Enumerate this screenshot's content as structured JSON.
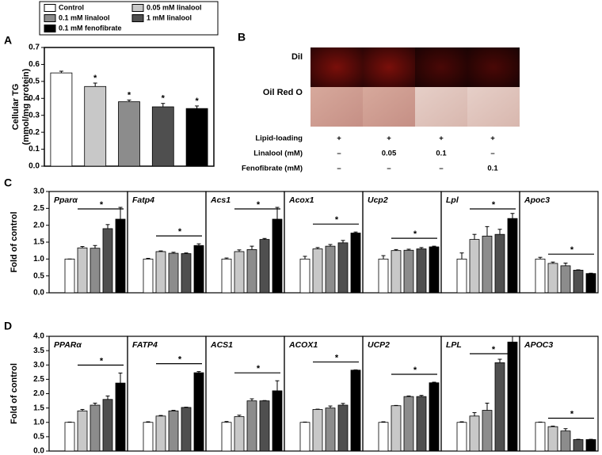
{
  "panel_labels": [
    "A",
    "B",
    "C",
    "D"
  ],
  "legend": [
    {
      "name": "Control",
      "color": "#ffffff"
    },
    {
      "name": "0.05 mM linalool",
      "color": "#c8c8c8"
    },
    {
      "name": "0.1 mM linalool",
      "color": "#8c8c8c"
    },
    {
      "name": "1 mM linalool",
      "color": "#4f4f4f"
    },
    {
      "name": "0.1 mM fenofibrate",
      "color": "#000000"
    }
  ],
  "image_panel": {
    "row_labels": [
      "DiI",
      "Oil Red O"
    ],
    "conditions": [
      {
        "name": "Lipid-loading",
        "values": [
          "+",
          "+",
          "+",
          "+"
        ]
      },
      {
        "name": "Linalool (mM)",
        "values": [
          "–",
          "0.05",
          "0.1",
          "–"
        ]
      },
      {
        "name": "Fenofibrate (mM)",
        "values": [
          "–",
          "–",
          "–",
          "0.1"
        ]
      }
    ]
  },
  "chart_data": [
    {
      "type": "bar",
      "ylabel": [
        "Cellular TG",
        "(mmol/mg protein)"
      ],
      "values": [
        0.55,
        0.47,
        0.38,
        0.35,
        0.34
      ],
      "errors": [
        0.01,
        0.02,
        0.01,
        0.02,
        0.015
      ],
      "bar_annotations": [
        null,
        "*",
        "*",
        "*",
        "*"
      ],
      "ylim": [
        0,
        0.7
      ],
      "yticks": [
        {
          "value": 0,
          "label": "0.0"
        },
        0.1,
        0.2,
        0.3,
        0.4,
        0.5,
        0.6,
        0.7
      ]
    },
    {
      "type": "facet_bar",
      "ylabel": "Fold of control",
      "ylim": [
        0,
        3
      ],
      "yticks": [
        {
          "value": 0,
          "label": "0.0"
        },
        0.5,
        {
          "value": 1,
          "label": "1.0"
        },
        1.5,
        {
          "value": 2,
          "label": "2.0"
        },
        2.5,
        {
          "value": 3,
          "label": "3.0"
        }
      ],
      "facets": [
        {
          "title": "Pparα",
          "values": [
            1.0,
            1.33,
            1.32,
            1.9,
            2.18
          ],
          "errors": [
            0,
            0.04,
            0.08,
            0.12,
            0.35
          ],
          "annotation": "*"
        },
        {
          "title": "Fatp4",
          "values": [
            1.0,
            1.22,
            1.17,
            1.16,
            1.4
          ],
          "errors": [
            0.02,
            0.02,
            0.03,
            0.02,
            0.05
          ],
          "annotation": "*"
        },
        {
          "title": "Acs1",
          "values": [
            1.0,
            1.22,
            1.28,
            1.58,
            2.18
          ],
          "errors": [
            0.03,
            0.05,
            0.1,
            0.03,
            0.35
          ],
          "annotation": "*"
        },
        {
          "title": "Acox1",
          "values": [
            1.0,
            1.3,
            1.38,
            1.48,
            1.77
          ],
          "errors": [
            0.08,
            0.04,
            0.05,
            0.07,
            0.03
          ],
          "annotation": "*"
        },
        {
          "title": "Ucp2",
          "values": [
            1.0,
            1.25,
            1.26,
            1.3,
            1.36
          ],
          "errors": [
            0.1,
            0.03,
            0.03,
            0.04,
            0.02
          ],
          "annotation": "*"
        },
        {
          "title": "Lpl",
          "values": [
            1.0,
            1.58,
            1.68,
            1.73,
            2.2
          ],
          "errors": [
            0.18,
            0.15,
            0.28,
            0.15,
            0.15
          ],
          "annotation": "*"
        },
        {
          "title": "Apoc3",
          "values": [
            1.0,
            0.87,
            0.8,
            0.67,
            0.57
          ],
          "errors": [
            0.05,
            0.04,
            0.08,
            0.01,
            0.01
          ],
          "annotation": "*"
        }
      ]
    },
    {
      "type": "facet_bar",
      "ylabel": "Fold of control",
      "ylim": [
        0,
        4
      ],
      "yticks": [
        {
          "value": 0,
          "label": "0.0"
        },
        0.5,
        {
          "value": 1,
          "label": "1.0"
        },
        1.5,
        {
          "value": 2,
          "label": "2.0"
        },
        2.5,
        {
          "value": 3,
          "label": "3.0"
        },
        3.5,
        {
          "value": 4,
          "label": "4.0"
        }
      ],
      "facets": [
        {
          "title": "PPARα",
          "values": [
            1.0,
            1.4,
            1.6,
            1.8,
            2.37
          ],
          "errors": [
            0.01,
            0.05,
            0.07,
            0.12,
            0.35
          ],
          "annotation": "*"
        },
        {
          "title": "FATP4",
          "values": [
            1.0,
            1.22,
            1.4,
            1.52,
            2.73
          ],
          "errors": [
            0.02,
            0.02,
            0.02,
            0.01,
            0.04
          ],
          "annotation": "*"
        },
        {
          "title": "ACS1",
          "values": [
            1.0,
            1.2,
            1.75,
            1.75,
            2.1
          ],
          "errors": [
            0.03,
            0.05,
            0.07,
            0.01,
            0.35
          ],
          "annotation": "*"
        },
        {
          "title": "ACOX1",
          "values": [
            1.0,
            1.45,
            1.5,
            1.6,
            2.82
          ],
          "errors": [
            0.01,
            0.01,
            0.07,
            0.06,
            0.01
          ],
          "annotation": "*"
        },
        {
          "title": "UCP2",
          "values": [
            1.0,
            1.58,
            1.9,
            1.9,
            2.38
          ],
          "errors": [
            0.02,
            0.01,
            0.02,
            0.04,
            0.02
          ],
          "annotation": "*"
        },
        {
          "title": "LPL",
          "values": [
            1.0,
            1.22,
            1.42,
            3.08,
            3.8
          ],
          "errors": [
            0.02,
            0.12,
            0.25,
            0.12,
            0.2
          ],
          "annotation": "*"
        },
        {
          "title": "APOC3",
          "values": [
            1.0,
            0.85,
            0.7,
            0.4,
            0.4
          ],
          "errors": [
            0.01,
            0.02,
            0.08,
            0.01,
            0.01
          ],
          "annotation": "*"
        }
      ]
    }
  ]
}
